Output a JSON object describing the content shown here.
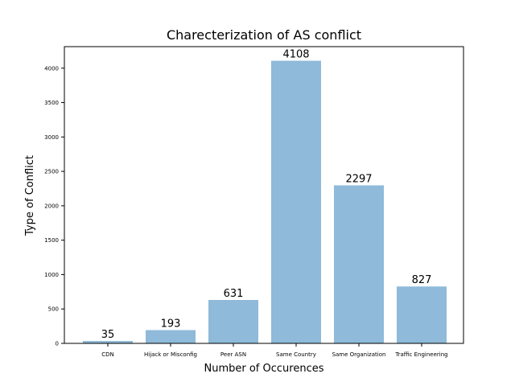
{
  "chart_data": {
    "type": "bar",
    "title": "Charecterization of AS conflict",
    "xlabel": "Number of Occurences",
    "ylabel": "Type of Conflict",
    "categories": [
      "CDN",
      "Hijack or Misconfig",
      "Peer ASN",
      "Same Country",
      "Same Organization",
      "Traffic Engineering"
    ],
    "values": [
      35,
      193,
      631,
      4108,
      2297,
      827
    ],
    "ylim": [
      0,
      4313
    ],
    "yticks": [
      0,
      500,
      1000,
      1500,
      2000,
      2500,
      3000,
      3500,
      4000
    ],
    "grid": false,
    "legend": "none",
    "bar_color": "#8fbad9"
  }
}
